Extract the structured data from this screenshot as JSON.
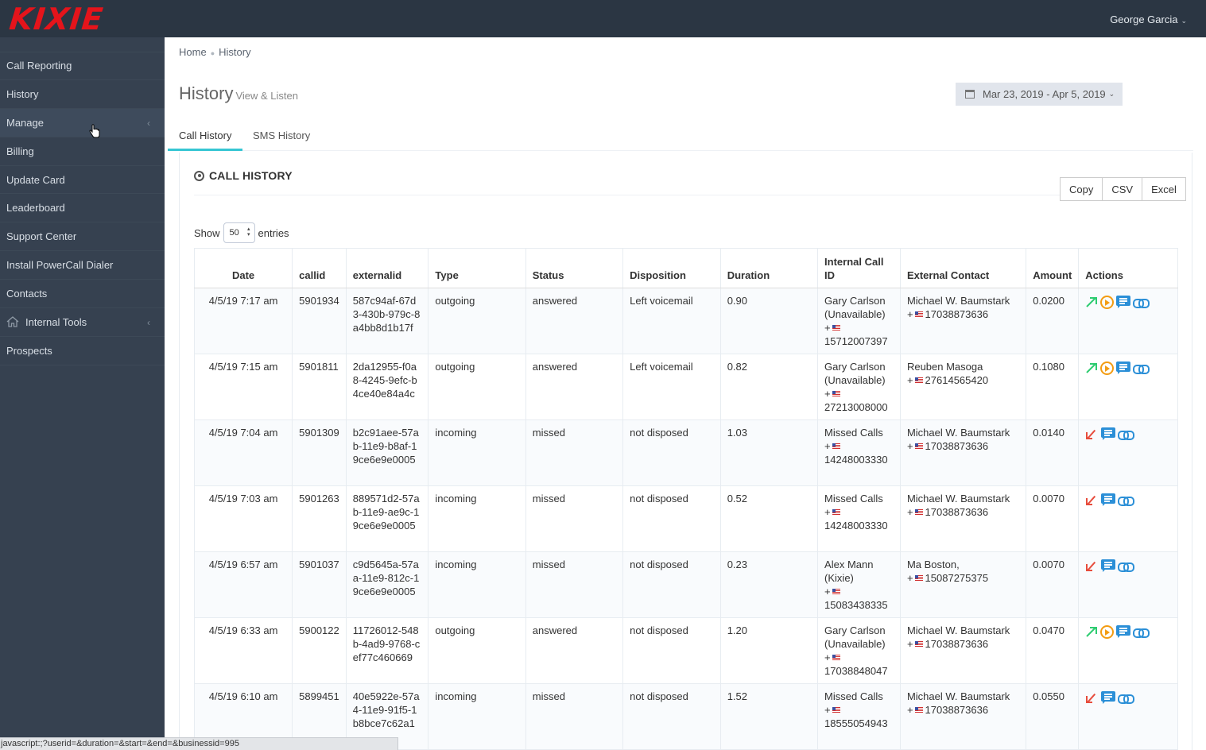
{
  "app": {
    "logo_text": "KIXIE",
    "brand_color": "#e5141b"
  },
  "header": {
    "user_name": "George Garcia"
  },
  "sidebar": {
    "items": [
      {
        "label": "Call Reporting"
      },
      {
        "label": "History"
      },
      {
        "label": "Manage"
      },
      {
        "label": "Billing"
      },
      {
        "label": "Update Card"
      },
      {
        "label": "Leaderboard"
      },
      {
        "label": "Support Center"
      },
      {
        "label": "Install PowerCall Dialer"
      },
      {
        "label": "Contacts"
      },
      {
        "label": "Internal Tools"
      },
      {
        "label": "Prospects"
      }
    ]
  },
  "breadcrumb": {
    "home": "Home",
    "current": "History"
  },
  "page": {
    "title": "History",
    "subtitle": "View & Listen",
    "date_range": "Mar 23, 2019 - Apr 5, 2019"
  },
  "tabs": [
    {
      "label": "Call History"
    },
    {
      "label": "SMS History"
    }
  ],
  "portlet": {
    "title": "CALL HISTORY",
    "export_buttons": [
      "Copy",
      "CSV",
      "Excel"
    ],
    "length": {
      "show": "Show",
      "value": "50",
      "entries": "entries"
    }
  },
  "table": {
    "headers": [
      "Date",
      "callid",
      "externalid",
      "Type",
      "Status",
      "Disposition",
      "Duration",
      "Internal Call ID",
      "External Contact",
      "Amount",
      "Actions"
    ],
    "rows": [
      {
        "date": "4/5/19 7:17 am",
        "callid": "5901934",
        "externalid": "587c94af-67d3-430b-979c-8a4bb8d1b17f",
        "type": "outgoing",
        "status": "answered",
        "disposition": "Left voicemail",
        "duration": "0.90",
        "internal_name": "Gary Carlson (Unavailable)",
        "internal_number": "15712007397",
        "external_name": "Michael W. Baumstark",
        "external_number": "17038873636",
        "amount": "0.0200"
      },
      {
        "date": "4/5/19 7:15 am",
        "callid": "5901811",
        "externalid": "2da12955-f0a8-4245-9efc-b4ce40e84a4c",
        "type": "outgoing",
        "status": "answered",
        "disposition": "Left voicemail",
        "duration": "0.82",
        "internal_name": "Gary Carlson (Unavailable)",
        "internal_number": "27213008000",
        "external_name": "Reuben Masoga",
        "external_number": "27614565420",
        "amount": "0.1080"
      },
      {
        "date": "4/5/19 7:04 am",
        "callid": "5901309",
        "externalid": "b2c91aee-57ab-11e9-b8af-19ce6e9e0005",
        "type": "incoming",
        "status": "missed",
        "disposition": "not disposed",
        "duration": "1.03",
        "internal_name": "Missed Calls",
        "internal_number": "14248003330",
        "external_name": "Michael W. Baumstark",
        "external_number": "17038873636",
        "amount": "0.0140"
      },
      {
        "date": "4/5/19 7:03 am",
        "callid": "5901263",
        "externalid": "889571d2-57ab-11e9-ae9c-19ce6e9e0005",
        "type": "incoming",
        "status": "missed",
        "disposition": "not disposed",
        "duration": "0.52",
        "internal_name": "Missed Calls",
        "internal_number": "14248003330",
        "external_name": "Michael W. Baumstark",
        "external_number": "17038873636",
        "amount": "0.0070"
      },
      {
        "date": "4/5/19 6:57 am",
        "callid": "5901037",
        "externalid": "c9d5645a-57aa-11e9-812c-19ce6e9e0005",
        "type": "incoming",
        "status": "missed",
        "disposition": "not disposed",
        "duration": "0.23",
        "internal_name": "Alex Mann (Kixie)",
        "internal_number": "15083438335",
        "external_name": "Ma Boston,",
        "external_number": "15087275375",
        "amount": "0.0070"
      },
      {
        "date": "4/5/19 6:33 am",
        "callid": "5900122",
        "externalid": "11726012-548b-4ad9-9768-cef77c460669",
        "type": "outgoing",
        "status": "answered",
        "disposition": "not disposed",
        "duration": "1.20",
        "internal_name": "Gary Carlson (Unavailable)",
        "internal_number": "17038848047",
        "external_name": "Michael W. Baumstark",
        "external_number": "17038873636",
        "amount": "0.0470"
      },
      {
        "date": "4/5/19 6:10 am",
        "callid": "5899451",
        "externalid": "40e5922e-57a4-11e9-91f5-1b8bce7c62a1",
        "type": "incoming",
        "status": "missed",
        "disposition": "not disposed",
        "duration": "1.52",
        "internal_name": "Missed Calls",
        "internal_number": "18555054943",
        "external_name": "Michael W. Baumstark",
        "external_number": "17038873636",
        "amount": "0.0550"
      }
    ]
  },
  "statusbar": {
    "url": "javascript:;?userid=&duration=&start=&end=&businessid=995"
  },
  "icons": {
    "outgoing": "outgoing-call-icon",
    "missed": "missed-call-icon",
    "play": "play-recording-icon",
    "sms": "message-icon",
    "link": "link-icon"
  }
}
